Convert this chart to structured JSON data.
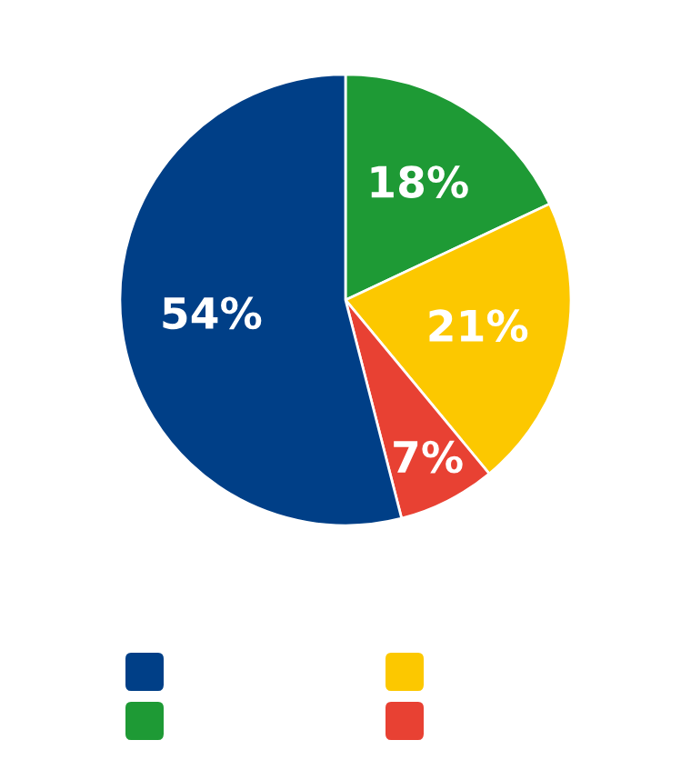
{
  "chart_data": {
    "type": "pie",
    "categories": [
      null,
      null,
      null,
      null
    ],
    "values": [
      18,
      21,
      7,
      54
    ],
    "value_labels": [
      "18%",
      "21%",
      "7%",
      "54%"
    ],
    "colors": [
      "#1e9a35",
      "#fcc800",
      "#e84133",
      "#003f87"
    ]
  }
}
